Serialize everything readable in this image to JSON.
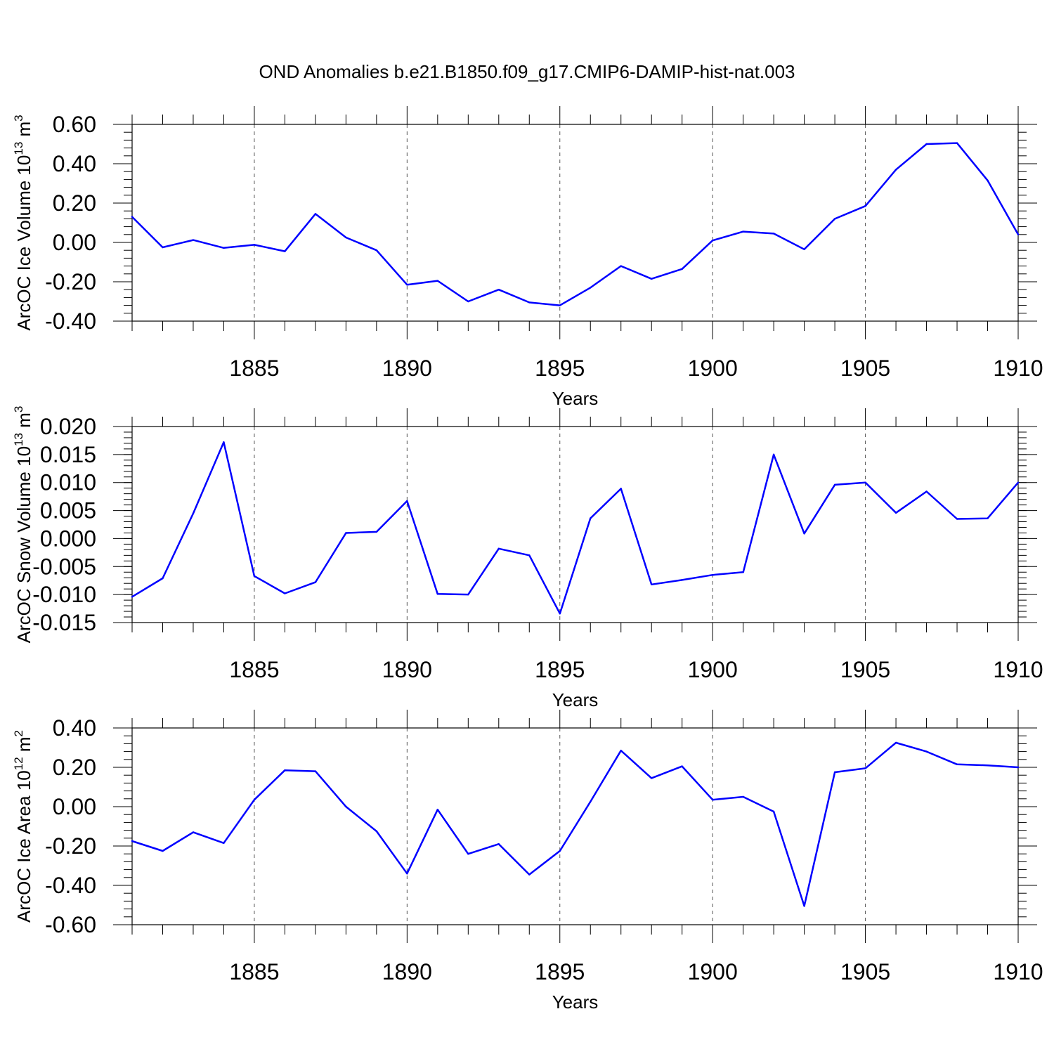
{
  "title": "OND Anomalies b.e21.B1850.f09_g17.CMIP6-DAMIP-hist-nat.003",
  "colors": {
    "series": "#0000ff",
    "axis": "#000000",
    "grid": "#555555"
  },
  "chart_data": [
    {
      "type": "line",
      "ylabel": "ArcOC Ice Volume 10",
      "ylabel_exp": "13",
      "ylabel_unit": " m",
      "ylabel_unit_exp": "3",
      "xlabel": "Years",
      "xlim": [
        1881,
        1910
      ],
      "ylim": [
        -0.4,
        0.6
      ],
      "yticks": [
        -0.4,
        -0.2,
        0.0,
        0.2,
        0.4,
        0.6
      ],
      "ytick_labels": [
        "-0.40",
        "-0.20",
        "0.00",
        "0.20",
        "0.40",
        "0.60"
      ],
      "yminor_step": 0.04,
      "xticks": [
        1885,
        1890,
        1895,
        1900,
        1905,
        1910
      ],
      "xtick_labels": [
        "1885",
        "1890",
        "1895",
        "1900",
        "1905",
        "1910"
      ],
      "grid_x": [
        1885,
        1890,
        1895,
        1900,
        1905
      ],
      "x": [
        1881,
        1882,
        1883,
        1884,
        1885,
        1886,
        1887,
        1888,
        1889,
        1890,
        1891,
        1892,
        1893,
        1894,
        1895,
        1896,
        1897,
        1898,
        1899,
        1900,
        1901,
        1902,
        1903,
        1904,
        1905,
        1906,
        1907,
        1908,
        1909,
        1910
      ],
      "values": [
        0.13,
        -0.025,
        0.012,
        -0.028,
        -0.012,
        -0.045,
        0.145,
        0.025,
        -0.04,
        -0.215,
        -0.195,
        -0.3,
        -0.24,
        -0.305,
        -0.32,
        -0.23,
        -0.12,
        -0.185,
        -0.135,
        0.01,
        0.055,
        0.045,
        -0.035,
        0.12,
        0.185,
        0.37,
        0.5,
        0.505,
        0.315,
        0.04
      ]
    },
    {
      "type": "line",
      "ylabel": "ArcOC Snow Volume 10",
      "ylabel_exp": "13",
      "ylabel_unit": " m",
      "ylabel_unit_exp": "3",
      "xlabel": "Years",
      "xlim": [
        1881,
        1910
      ],
      "ylim": [
        -0.015,
        0.02
      ],
      "yticks": [
        -0.015,
        -0.01,
        -0.005,
        0.0,
        0.005,
        0.01,
        0.015,
        0.02
      ],
      "ytick_labels": [
        "-0.015",
        "-0.010",
        "-0.005",
        "0.000",
        "0.005",
        "0.010",
        "0.015",
        "0.020"
      ],
      "yminor_step": 0.001,
      "xticks": [
        1885,
        1890,
        1895,
        1900,
        1905,
        1910
      ],
      "xtick_labels": [
        "1885",
        "1890",
        "1895",
        "1900",
        "1905",
        "1910"
      ],
      "grid_x": [
        1885,
        1890,
        1895,
        1900,
        1905
      ],
      "x": [
        1881,
        1882,
        1883,
        1884,
        1885,
        1886,
        1887,
        1888,
        1889,
        1890,
        1891,
        1892,
        1893,
        1894,
        1895,
        1896,
        1897,
        1898,
        1899,
        1900,
        1901,
        1902,
        1903,
        1904,
        1905,
        1906,
        1907,
        1908,
        1909,
        1910
      ],
      "values": [
        -0.0104,
        -0.0071,
        0.0045,
        0.0172,
        -0.0067,
        -0.0098,
        -0.0078,
        0.001,
        0.0012,
        0.0067,
        -0.0099,
        -0.01,
        -0.0018,
        -0.003,
        -0.0134,
        0.0036,
        0.0089,
        -0.0082,
        -0.0074,
        -0.0065,
        -0.006,
        0.015,
        0.0009,
        0.0096,
        0.01,
        0.0046,
        0.0084,
        0.0035,
        0.0036,
        0.01
      ]
    },
    {
      "type": "line",
      "ylabel": "ArcOC Ice Area 10",
      "ylabel_exp": "12",
      "ylabel_unit": " m",
      "ylabel_unit_exp": "2",
      "xlabel": "Years",
      "xlim": [
        1881,
        1910
      ],
      "ylim": [
        -0.6,
        0.4
      ],
      "yticks": [
        -0.6,
        -0.4,
        -0.2,
        0.0,
        0.2,
        0.4
      ],
      "ytick_labels": [
        "-0.60",
        "-0.40",
        "-0.20",
        "0.00",
        "0.20",
        "0.40"
      ],
      "yminor_step": 0.04,
      "xticks": [
        1885,
        1890,
        1895,
        1900,
        1905,
        1910
      ],
      "xtick_labels": [
        "1885",
        "1890",
        "1895",
        "1900",
        "1905",
        "1910"
      ],
      "grid_x": [
        1885,
        1890,
        1895,
        1900,
        1905
      ],
      "x": [
        1881,
        1882,
        1883,
        1884,
        1885,
        1886,
        1887,
        1888,
        1889,
        1890,
        1891,
        1892,
        1893,
        1894,
        1895,
        1896,
        1897,
        1898,
        1899,
        1900,
        1901,
        1902,
        1903,
        1904,
        1905,
        1906,
        1907,
        1908,
        1909,
        1910
      ],
      "values": [
        -0.175,
        -0.225,
        -0.13,
        -0.185,
        0.035,
        0.185,
        0.18,
        0.0,
        -0.125,
        -0.34,
        -0.015,
        -0.24,
        -0.19,
        -0.345,
        -0.225,
        0.025,
        0.285,
        0.145,
        0.205,
        0.035,
        0.05,
        -0.025,
        -0.505,
        0.175,
        0.195,
        0.325,
        0.28,
        0.215,
        0.21,
        0.2
      ]
    }
  ]
}
